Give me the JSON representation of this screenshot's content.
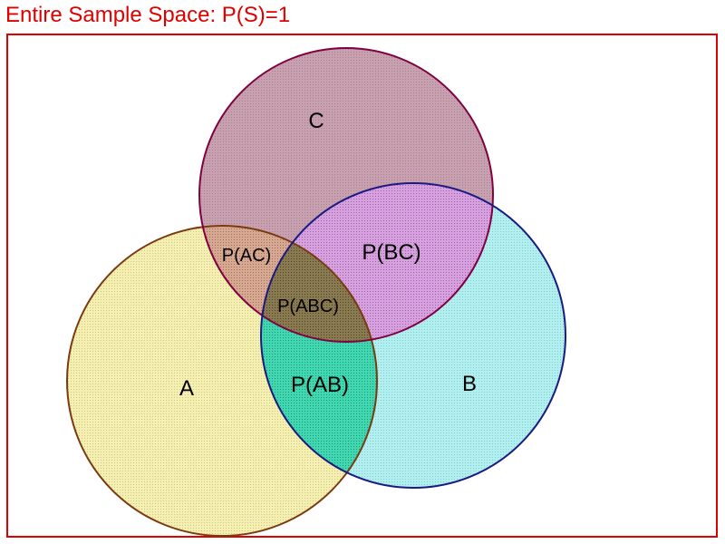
{
  "title": "Entire Sample Space: P(S)=1",
  "sets": {
    "a": {
      "label": "A",
      "color": "#f5f0b0",
      "border": "#7a3a10"
    },
    "b": {
      "label": "B",
      "color": "#b0f0f0",
      "border": "#1a1a80"
    },
    "c": {
      "label": "C",
      "color": "#c8a0b0",
      "border": "#800040"
    }
  },
  "regions": {
    "ab": {
      "label": "P(AB)",
      "color": "#40d8b0"
    },
    "ac": {
      "label": "P(AC)",
      "color": "#d8a890"
    },
    "bc": {
      "label": "P(BC)",
      "color": "#d8a0e0"
    },
    "abc": {
      "label": "P(ABC)",
      "color": "#8a7a50"
    }
  },
  "colors": {
    "title": "#e00000",
    "frame": "#e00000"
  }
}
